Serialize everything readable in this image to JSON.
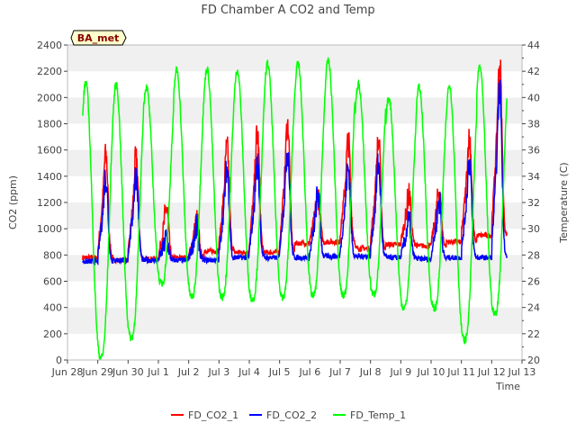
{
  "chart_data": {
    "type": "line",
    "title": "FD Chamber A CO2 and Temp",
    "badge": "BA_met",
    "xlabel": "Time",
    "ylabel": "CO2 (ppm)",
    "ylabel_right": "Temperature (C)",
    "x_ticks": [
      "Jun 28",
      "Jun 29",
      "Jun 30",
      "Jul 1",
      "Jul 2",
      "Jul 3",
      "Jul 4",
      "Jul 5",
      "Jul 6",
      "Jul 7",
      "Jul 8",
      "Jul 9",
      "Jul 10",
      "Jul 11",
      "Jul 12",
      "Jul 13"
    ],
    "x_range": [
      "Jun 28",
      "Jul 13"
    ],
    "ylim": [
      0,
      2400
    ],
    "ylim_right": [
      20,
      44
    ],
    "y_ticks": [
      0,
      200,
      400,
      600,
      800,
      1000,
      1200,
      1400,
      1600,
      1800,
      2000,
      2200,
      2400
    ],
    "y_ticks_right": [
      20,
      22,
      24,
      26,
      28,
      30,
      32,
      34,
      36,
      38,
      40,
      42,
      44
    ],
    "grid": "horizontal bands",
    "legend_position": "bottom",
    "colors": {
      "FD_CO2_1": "#ff0000",
      "FD_CO2_2": "#0000ff",
      "FD_Temp_1": "#00ff00",
      "band": "#f0f0f0",
      "badge_bg": "#ffffcc"
    },
    "series": [
      {
        "name": "FD_CO2_1",
        "axis": "left",
        "x_start": "Jun 28 12:00",
        "x_end": "Jul 12 12:00",
        "daily_min": [
          780,
          760,
          770,
          780,
          830,
          820,
          820,
          890,
          900,
          850,
          880,
          870,
          900,
          950
        ],
        "daily_max": [
          1550,
          1520,
          1150,
          1050,
          1600,
          1700,
          1780,
          1250,
          1650,
          1650,
          1250,
          1280,
          1680,
          2220
        ]
      },
      {
        "name": "FD_CO2_2",
        "axis": "left",
        "x_start": "Jun 28 12:00",
        "x_end": "Jul 12 12:00",
        "daily_min": [
          750,
          760,
          760,
          760,
          760,
          780,
          780,
          780,
          790,
          790,
          780,
          770,
          780,
          780
        ],
        "daily_max": [
          1380,
          1400,
          920,
          1000,
          1450,
          1480,
          1580,
          1250,
          1450,
          1480,
          1050,
          1200,
          1500,
          2040
        ]
      },
      {
        "name": "FD_Temp_1",
        "axis": "right",
        "x_start": "Jun 28 12:00",
        "x_end": "Jul 12 12:00",
        "daily_min": [
          20.2,
          21.7,
          25.8,
          24.8,
          24.8,
          24.6,
          24.8,
          24.9,
          24.9,
          25.0,
          24.0,
          23.9,
          21.5,
          23.5
        ],
        "daily_max": [
          41.2,
          41.0,
          40.8,
          42.1,
          42.2,
          42.1,
          42.6,
          42.6,
          42.8,
          41.0,
          40.0,
          40.8,
          41.0,
          42.4
        ]
      }
    ]
  }
}
